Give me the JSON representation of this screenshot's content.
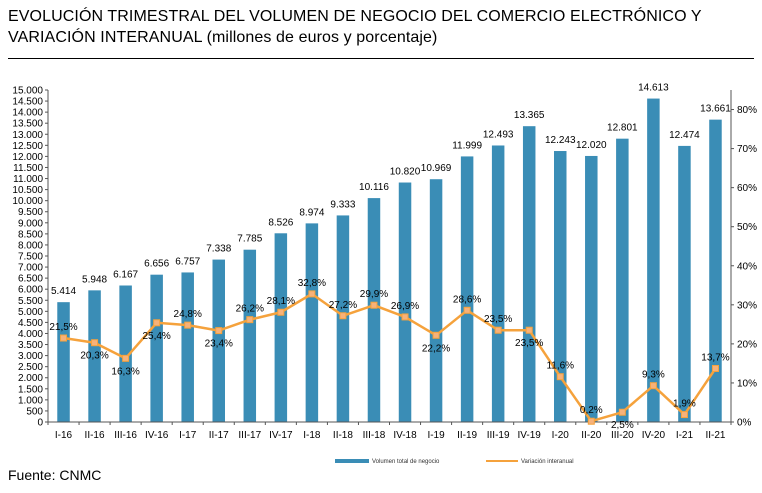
{
  "title_line1": "EVOLUCIÓN TRIMESTRAL DEL VOLUMEN DE NEGOCIO DEL COMERCIO ELECTRÓNICO Y",
  "title_line2": "VARIACIÓN INTERANUAL (millones de euros y porcentaje)",
  "source": "Fuente: CNMC",
  "colors": {
    "bars": "#3A8DB6",
    "line": "#F5A23C",
    "marker": "#F7B27A"
  },
  "chart_data": {
    "type": "bar",
    "categories": [
      "I-16",
      "II-16",
      "III-16",
      "IV-16",
      "I-17",
      "II-17",
      "III-17",
      "IV-17",
      "I-18",
      "II-18",
      "III-18",
      "IV-18",
      "I-19",
      "II-19",
      "III-19",
      "IV-19",
      "I-20",
      "II-20",
      "III-20",
      "IV-20",
      "I-21",
      "II-21"
    ],
    "series": [
      {
        "name": "Volumen total de negocio",
        "type": "bar",
        "axis": "left",
        "values": [
          5414,
          5948,
          6167,
          6656,
          6757,
          7338,
          7785,
          8526,
          8974,
          9333,
          10116,
          10820,
          10969,
          11999,
          12493,
          13365,
          12243,
          12020,
          12801,
          14613,
          12474,
          13661
        ],
        "labels": [
          "5.414",
          "5.948",
          "6.167",
          "6.656",
          "6.757",
          "7.338",
          "7.785",
          "8.526",
          "8.974",
          "9.333",
          "10.116",
          "10.820",
          "10.969",
          "11.999",
          "12.493",
          "13.365",
          "12.243",
          "12.020",
          "12.801",
          "14.613",
          "12.474",
          "13.661"
        ]
      },
      {
        "name": "Variación interanual",
        "type": "line",
        "axis": "right",
        "values": [
          21.5,
          20.3,
          16.3,
          25.4,
          24.8,
          23.4,
          26.2,
          28.1,
          32.8,
          27.2,
          29.9,
          26.9,
          22.2,
          28.6,
          23.5,
          23.5,
          11.6,
          0.2,
          2.5,
          9.3,
          1.9,
          13.7
        ],
        "labels": [
          "21,5%",
          "20,3%",
          "16,3%",
          "25,4%",
          "24,8%",
          "23,4%",
          "26,2%",
          "28,1%",
          "32,8%",
          "27,2%",
          "29,9%",
          "26,9%",
          "22,2%",
          "28,6%",
          "23,5%",
          "23,5%",
          "11,6%",
          "0,2%",
          "2,5%",
          "9,3%",
          "1,9%",
          "13,7%"
        ]
      }
    ],
    "y_left": {
      "range": [
        0,
        15000
      ],
      "ticks": [
        0,
        500,
        1000,
        1500,
        2000,
        2500,
        3000,
        3500,
        4000,
        4500,
        5000,
        5500,
        6000,
        6500,
        7000,
        7500,
        8000,
        8500,
        9000,
        9500,
        10000,
        10500,
        11000,
        11500,
        12000,
        12500,
        13000,
        13500,
        14000,
        14500,
        15000
      ],
      "tick_labels": [
        "0",
        "500",
        "1.000",
        "1.500",
        "2.000",
        "2.500",
        "3.000",
        "3.500",
        "4.000",
        "4.500",
        "5.000",
        "5.500",
        "6.000",
        "6.500",
        "7.000",
        "7.500",
        "8.000",
        "8.500",
        "9.000",
        "9.500",
        "10.000",
        "10.500",
        "11.000",
        "11.500",
        "12.000",
        "12.500",
        "13.000",
        "13.500",
        "14.000",
        "14.500",
        "15.000"
      ]
    },
    "y_right": {
      "range": [
        0,
        85
      ],
      "ticks": [
        0,
        10,
        20,
        30,
        40,
        50,
        60,
        70,
        80
      ],
      "tick_labels": [
        "0%",
        "10%",
        "20%",
        "30%",
        "40%",
        "50%",
        "60%",
        "70%",
        "80%"
      ]
    },
    "grid": false,
    "legend_position": "bottom"
  }
}
